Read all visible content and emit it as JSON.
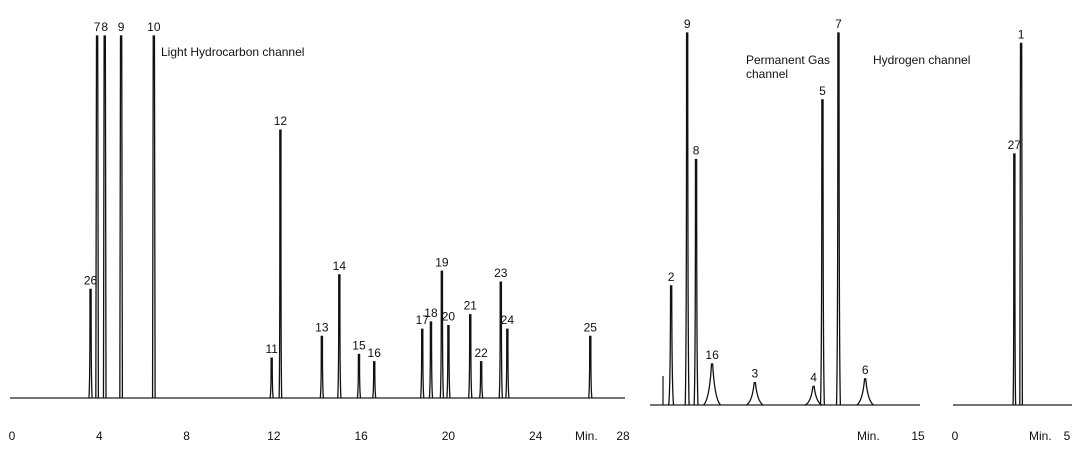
{
  "chart_data": [
    {
      "type": "line",
      "title": "Light Hydrocarbon channel",
      "xlabel": "Min.",
      "xlim": [
        0,
        28
      ],
      "xticks": [
        "0",
        "4",
        "8",
        "12",
        "16",
        "20",
        "24",
        "28"
      ],
      "peaks": [
        {
          "label": "26",
          "x": 3.6,
          "height": 0.3
        },
        {
          "label": "7",
          "x": 3.9,
          "height": 1.0
        },
        {
          "label": "8",
          "x": 4.25,
          "height": 1.0
        },
        {
          "label": "9",
          "x": 5.0,
          "height": 1.0
        },
        {
          "label": "10",
          "x": 6.5,
          "height": 1.0
        },
        {
          "label": "11",
          "x": 11.9,
          "height": 0.11
        },
        {
          "label": "12",
          "x": 12.3,
          "height": 0.74
        },
        {
          "label": "13",
          "x": 14.2,
          "height": 0.17
        },
        {
          "label": "14",
          "x": 15.0,
          "height": 0.34
        },
        {
          "label": "15",
          "x": 15.9,
          "height": 0.12
        },
        {
          "label": "16",
          "x": 16.6,
          "height": 0.1
        },
        {
          "label": "17",
          "x": 18.8,
          "height": 0.19
        },
        {
          "label": "18",
          "x": 19.2,
          "height": 0.21
        },
        {
          "label": "19",
          "x": 19.7,
          "height": 0.35
        },
        {
          "label": "20",
          "x": 20.0,
          "height": 0.2
        },
        {
          "label": "21",
          "x": 21.0,
          "height": 0.23
        },
        {
          "label": "22",
          "x": 21.5,
          "height": 0.1
        },
        {
          "label": "23",
          "x": 22.4,
          "height": 0.32
        },
        {
          "label": "24",
          "x": 22.7,
          "height": 0.19
        },
        {
          "label": "25",
          "x": 26.5,
          "height": 0.17
        }
      ]
    },
    {
      "type": "line",
      "title": "Permanent Gas channel",
      "xlabel": "Min.",
      "xlim": [
        0,
        15
      ],
      "xticks": [
        "15"
      ],
      "peaks": [
        {
          "label": "2",
          "x": 1.3,
          "height": 0.32
        },
        {
          "label": "9",
          "x": 2.2,
          "height": 1.0
        },
        {
          "label": "8",
          "x": 2.7,
          "height": 0.66
        },
        {
          "label": "16",
          "x": 3.6,
          "height": 0.11
        },
        {
          "label": "3",
          "x": 6.0,
          "height": 0.06
        },
        {
          "label": "4",
          "x": 9.3,
          "height": 0.05
        },
        {
          "label": "5",
          "x": 9.8,
          "height": 0.82
        },
        {
          "label": "7",
          "x": 10.7,
          "height": 1.0
        },
        {
          "label": "6",
          "x": 12.2,
          "height": 0.07
        }
      ]
    },
    {
      "type": "line",
      "title": "Hydrogen channel",
      "xlabel": "Min.",
      "xlim": [
        0,
        5
      ],
      "xticks": [
        "0",
        "5"
      ],
      "peaks": [
        {
          "label": "27",
          "x": 2.65,
          "height": 0.68
        },
        {
          "label": "1",
          "x": 2.95,
          "height": 0.98
        }
      ]
    }
  ]
}
